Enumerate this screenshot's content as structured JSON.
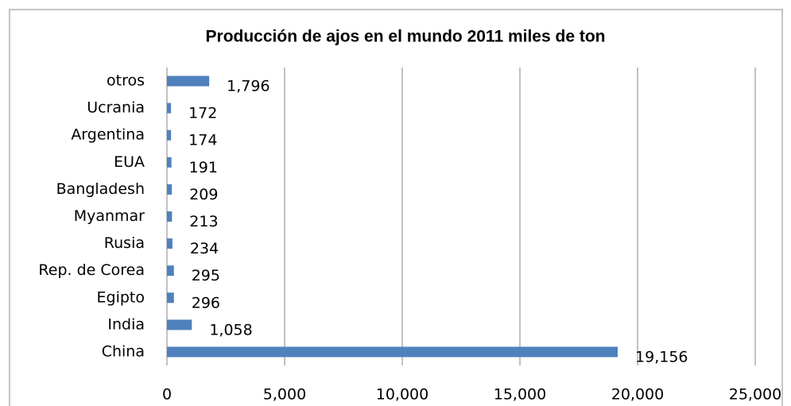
{
  "chart_data": {
    "type": "bar",
    "orientation": "horizontal",
    "title": "Producción de ajos en el mundo 2011 miles de ton",
    "categories": [
      "otros",
      "Ucrania",
      "Argentina",
      "EUA",
      "Bangladesh",
      "Myanmar",
      "Rusia",
      "Rep. de Corea",
      "Egipto",
      "India",
      "China"
    ],
    "values": [
      1796,
      172,
      174,
      191,
      209,
      213,
      234,
      295,
      296,
      1058,
      19156
    ],
    "value_labels": [
      "1,796",
      "172",
      "174",
      "191",
      "209",
      "213",
      "234",
      "295",
      "296",
      "1,058",
      "19,156"
    ],
    "color": "#4f81bd",
    "xlim": [
      0,
      25000
    ],
    "xticks": [
      0,
      {
        "value": 5000,
        "label": "5,000"
      },
      {
        "value": 10000,
        "label": "10,000"
      },
      {
        "value": 15000,
        "label": "15,000"
      },
      {
        "value": 20000,
        "label": "20,000"
      },
      {
        "value": 25000,
        "label": "25,000"
      }
    ],
    "grid": true
  }
}
